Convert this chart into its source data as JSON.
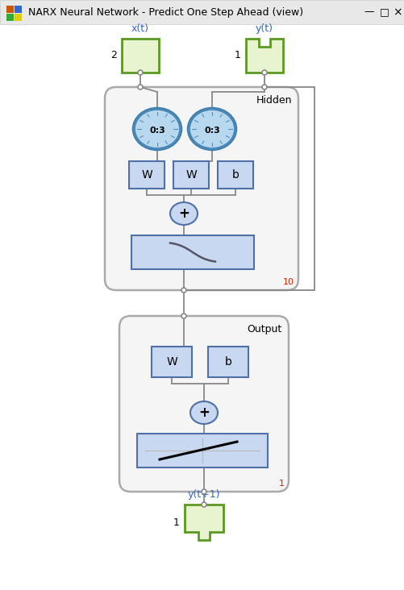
{
  "title": "NARX Neural Network - Predict One Step Ahead (view)",
  "window_bg": "#f2f2f2",
  "titlebar_bg": "#e8e8e8",
  "content_bg": "#ffffff",
  "input_box_fill": "#e8f4d0",
  "input_box_edge": "#5a9a20",
  "layer_box_fill": "#c8d8f0",
  "layer_box_edge": "#5070a8",
  "delay_fill": "#b8d8f0",
  "delay_edge": "#4080b0",
  "sum_fill": "#c8d8f0",
  "sum_edge": "#5070a8",
  "frame_fill": "#f5f5f5",
  "frame_edge": "#aaaaaa",
  "line_color": "#888888",
  "red_text": "#cc2200",
  "blue_text": "#3366cc",
  "hidden_label": "Hidden",
  "output_label": "Output",
  "hidden_size": "10",
  "output_size": "1",
  "input1_label": "x(t)",
  "input2_label": "y(t)",
  "out_label": "y(t+1)",
  "input1_size": "2",
  "input2_size": "1",
  "out_size": "1",
  "delay_text": "0:3"
}
